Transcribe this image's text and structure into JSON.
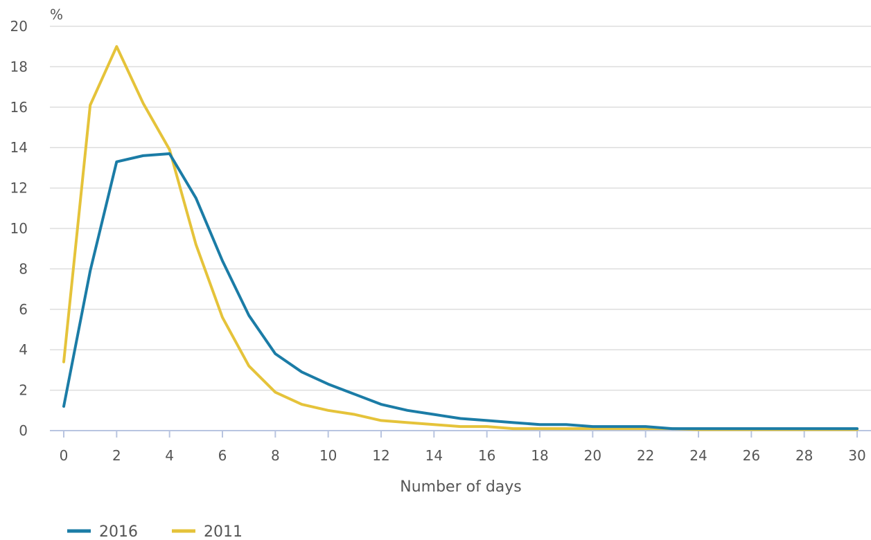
{
  "chart_data": {
    "type": "line",
    "title": "",
    "xlabel": "Number of days",
    "ylabel": "%",
    "xlim": [
      0,
      30
    ],
    "ylim": [
      0,
      20
    ],
    "x_ticks": [
      0,
      2,
      4,
      6,
      8,
      10,
      12,
      14,
      16,
      18,
      20,
      22,
      24,
      26,
      28,
      30
    ],
    "y_ticks": [
      0,
      2,
      4,
      6,
      8,
      10,
      12,
      14,
      16,
      18,
      20
    ],
    "grid": "horizontal",
    "legend_position": "bottom-left",
    "x": [
      0,
      1,
      2,
      3,
      4,
      5,
      6,
      7,
      8,
      9,
      10,
      11,
      12,
      13,
      14,
      15,
      16,
      17,
      18,
      19,
      20,
      21,
      22,
      23,
      24,
      25,
      26,
      27,
      28,
      29,
      30
    ],
    "series": [
      {
        "name": "2016",
        "color": "#1b7ca6",
        "values": [
          1.2,
          7.9,
          13.3,
          13.6,
          13.7,
          11.5,
          8.4,
          5.7,
          3.8,
          2.9,
          2.3,
          1.8,
          1.3,
          1.0,
          0.8,
          0.6,
          0.5,
          0.4,
          0.3,
          0.3,
          0.2,
          0.2,
          0.2,
          0.1,
          0.1,
          0.1,
          0.1,
          0.1,
          0.1,
          0.1,
          0.1
        ]
      },
      {
        "name": "2011",
        "color": "#e5c33a",
        "values": [
          3.4,
          16.1,
          19.0,
          16.2,
          13.9,
          9.2,
          5.6,
          3.2,
          1.9,
          1.3,
          1.0,
          0.8,
          0.5,
          0.4,
          0.3,
          0.2,
          0.2,
          0.1,
          0.1,
          0.1,
          0.1,
          0.1,
          0.1,
          0.1,
          0.05,
          0.05,
          0.05,
          0.05,
          0.05,
          0.05,
          0.05
        ]
      }
    ]
  }
}
